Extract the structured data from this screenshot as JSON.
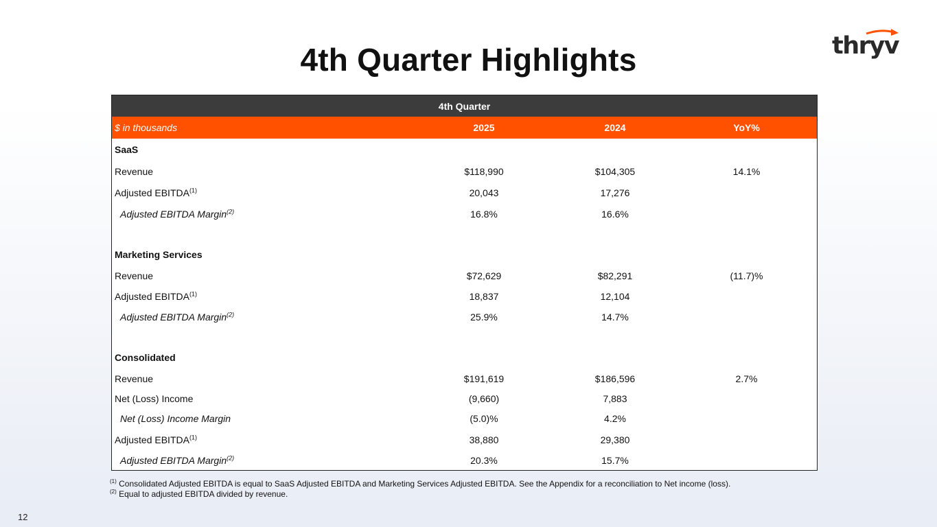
{
  "slide": {
    "title": "4th Quarter Highlights",
    "page_number": "12",
    "logo_text": "thryv",
    "brand_color": "#ff5100"
  },
  "table": {
    "period_header": "4th Quarter",
    "units_label": "$ in thousands",
    "columns": [
      "2025",
      "2024",
      "YoY%"
    ],
    "rows": [
      {
        "label": "SaaS",
        "sup": "",
        "y2025": "",
        "y2024": "",
        "yoy": ""
      },
      {
        "label": "Revenue",
        "sup": "",
        "y2025": "$118,990",
        "y2024": "$104,305",
        "yoy": "14.1%"
      },
      {
        "label": "Adjusted EBITDA",
        "sup": "(1)",
        "y2025": "20,043",
        "y2024": "17,276",
        "yoy": ""
      },
      {
        "label": "Adjusted EBITDA Margin",
        "sup": "(2)",
        "y2025": "16.8%",
        "y2024": "16.6%",
        "yoy": ""
      },
      {
        "label": "Marketing Services",
        "sup": "",
        "y2025": "",
        "y2024": "",
        "yoy": ""
      },
      {
        "label": "Revenue",
        "sup": "",
        "y2025": "$72,629",
        "y2024": "$82,291",
        "yoy": "(11.7)%"
      },
      {
        "label": "Adjusted EBITDA",
        "sup": "(1)",
        "y2025": "18,837",
        "y2024": "12,104",
        "yoy": ""
      },
      {
        "label": "Adjusted EBITDA Margin",
        "sup": "(2)",
        "y2025": "25.9%",
        "y2024": "14.7%",
        "yoy": ""
      },
      {
        "label": "Consolidated",
        "sup": "",
        "y2025": "",
        "y2024": "",
        "yoy": ""
      },
      {
        "label": "Revenue",
        "sup": "",
        "y2025": "$191,619",
        "y2024": "$186,596",
        "yoy": "2.7%"
      },
      {
        "label": "Net (Loss) Income",
        "sup": "",
        "y2025": "(9,660)",
        "y2024": "7,883",
        "yoy": ""
      },
      {
        "label": "Net (Loss) Income Margin",
        "sup": "",
        "y2025": "(5.0)%",
        "y2024": "4.2%",
        "yoy": ""
      },
      {
        "label": "Adjusted EBITDA",
        "sup": "(1)",
        "y2025": "38,880",
        "y2024": "29,380",
        "yoy": ""
      },
      {
        "label": "Adjusted EBITDA Margin",
        "sup": "(2)",
        "y2025": "20.3%",
        "y2024": "15.7%",
        "yoy": ""
      }
    ]
  },
  "footnotes": [
    {
      "marker": "(1)",
      "text": "Consolidated Adjusted EBITDA is equal to SaaS Adjusted EBITDA and Marketing Services Adjusted EBITDA. See the Appendix for a reconciliation to Net income (loss)."
    },
    {
      "marker": "(2)",
      "text": "Equal to adjusted EBITDA divided by revenue."
    }
  ]
}
